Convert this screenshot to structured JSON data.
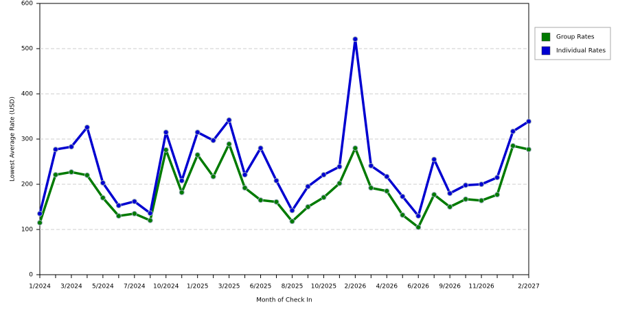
{
  "chart_data": {
    "type": "line",
    "x_label": "Month of Check In",
    "y_label": "Lowest Average Rate (USD)",
    "categories": [
      "1/2024",
      null,
      "3/2024",
      null,
      "5/2024",
      null,
      "7/2024",
      null,
      "10/2024",
      null,
      "1/2025",
      null,
      "3/2025",
      null,
      "6/2025",
      null,
      "8/2025",
      null,
      "10/2025",
      null,
      "2/2026",
      null,
      "4/2026",
      null,
      "6/2026",
      null,
      "9/2026",
      null,
      "11/2026",
      null,
      null,
      "2/2027"
    ],
    "series": [
      {
        "name": "Group Rates",
        "color": "#007a00",
        "values": [
          115,
          221,
          227,
          220,
          170,
          130,
          135,
          120,
          276,
          182,
          265,
          217,
          289,
          192,
          165,
          161,
          118,
          150,
          171,
          202,
          280,
          192,
          185,
          132,
          105,
          177,
          150,
          167,
          164,
          177,
          285,
          277
        ]
      },
      {
        "name": "Individual Rates",
        "color": "#0000d0",
        "values": [
          135,
          277,
          283,
          326,
          203,
          153,
          162,
          136,
          315,
          208,
          315,
          297,
          342,
          221,
          280,
          208,
          142,
          195,
          221,
          239,
          521,
          241,
          217,
          173,
          130,
          255,
          180,
          198,
          200,
          215,
          317,
          339
        ]
      }
    ],
    "ylim": [
      0,
      600
    ],
    "yticks": [
      0,
      100,
      200,
      300,
      400,
      500,
      600
    ],
    "grid": true,
    "legend": "right"
  }
}
